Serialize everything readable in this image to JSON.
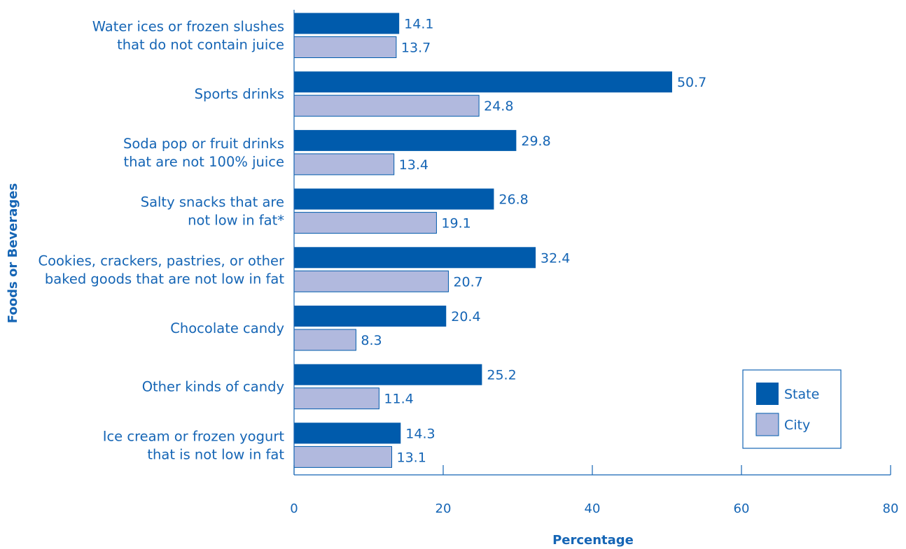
{
  "chart_data": {
    "type": "bar",
    "orientation": "horizontal",
    "categories": [
      [
        "Water ices or frozen slushes",
        "that do not contain juice"
      ],
      [
        "Sports drinks"
      ],
      [
        "Soda pop or fruit drinks",
        "that are not 100% juice"
      ],
      [
        "Salty snacks that are",
        "not low in fat*"
      ],
      [
        "Cookies, crackers, pastries, or other",
        "baked goods that are not low in fat"
      ],
      [
        "Chocolate candy"
      ],
      [
        "Other kinds of candy"
      ],
      [
        "Ice cream or frozen yogurt",
        "that is not low in fat"
      ]
    ],
    "series": [
      {
        "name": "State",
        "color": "#005bac",
        "values": [
          14.1,
          50.7,
          29.8,
          26.8,
          32.4,
          20.4,
          25.2,
          14.3
        ]
      },
      {
        "name": "City",
        "color": "#b1b9de",
        "values": [
          13.7,
          24.8,
          13.4,
          19.1,
          20.7,
          8.3,
          11.4,
          13.1
        ]
      }
    ],
    "value_labels": {
      "State": [
        "14.1",
        "50.7",
        "29.8",
        "26.8",
        "32.4",
        "20.4",
        "25.2",
        "14.3"
      ],
      "City": [
        "13.7",
        "24.8",
        "13.4",
        "19.1",
        "20.7",
        "8.3",
        "11.4",
        "13.1"
      ]
    },
    "xlabel": "Percentage",
    "ylabel": "Foods or Beverages",
    "xlim": [
      0,
      80
    ],
    "xticks": [
      0,
      20,
      40,
      60,
      80
    ],
    "xtick_labels": [
      "0",
      "20",
      "40",
      "60",
      "80"
    ],
    "legend_position": "bottom-right",
    "grid": false
  }
}
